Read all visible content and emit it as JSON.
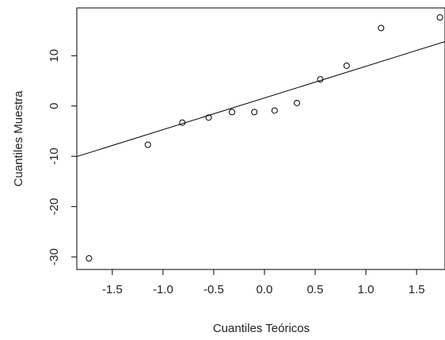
{
  "chart_data": {
    "type": "scatter",
    "title": "",
    "xlabel": "Cuantiles Teóricos",
    "ylabel": "Cuantiles Muestra",
    "xlim": [
      -1.85,
      1.78
    ],
    "ylim": [
      -32.5,
      19.5
    ],
    "xticks": [
      -1.5,
      -1.0,
      -0.5,
      0.0,
      0.5,
      1.0,
      1.5
    ],
    "xtick_labels": [
      "-1.5",
      "-1.0",
      "-0.5",
      "0.0",
      "0.5",
      "1.0",
      "1.5"
    ],
    "yticks": [
      -30,
      -20,
      -10,
      0,
      10
    ],
    "ytick_labels": [
      "-30",
      "-20",
      "-10",
      "0",
      "10"
    ],
    "points": [
      {
        "x": -1.73,
        "y": -30.3
      },
      {
        "x": -1.15,
        "y": -7.7
      },
      {
        "x": -0.81,
        "y": -3.3
      },
      {
        "x": -0.55,
        "y": -2.3
      },
      {
        "x": -0.32,
        "y": -1.2
      },
      {
        "x": -0.1,
        "y": -1.2
      },
      {
        "x": 0.1,
        "y": -0.9
      },
      {
        "x": 0.32,
        "y": 0.6
      },
      {
        "x": 0.55,
        "y": 5.3
      },
      {
        "x": 0.81,
        "y": 8.0
      },
      {
        "x": 1.15,
        "y": 15.5
      },
      {
        "x": 1.73,
        "y": 17.6
      }
    ],
    "reference_line": {
      "intercept": 1.6,
      "slope": 6.3
    },
    "grid": false,
    "marker": "open-circle",
    "colors": {
      "line": "#000000",
      "points": "#000000",
      "axes": "#000000"
    }
  }
}
